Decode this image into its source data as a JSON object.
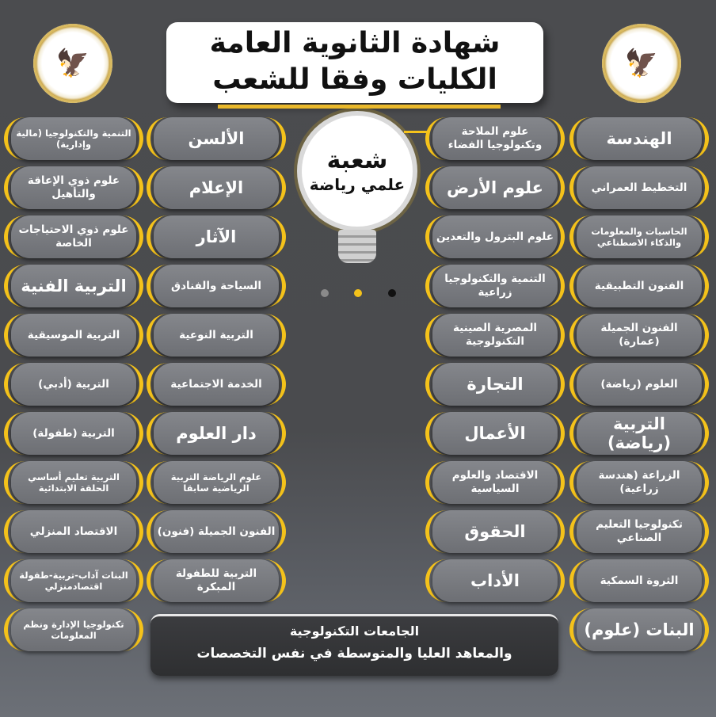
{
  "header": {
    "title_line1": "شهادة الثانوية العامة",
    "title_line2": "الكليات وفقا للشعب",
    "logo_left": "Ministry of Higher Education and Scientific Research",
    "logo_right": "Ministry of Education and Technical Education"
  },
  "bulb": {
    "line1": "شعبة",
    "line2": "علمي رياضة"
  },
  "colors": {
    "accent": "#f4c21b",
    "pill": "#76787d",
    "background": "#4a4b4e"
  },
  "columns": {
    "col1": [
      "التنمية والتكنولوجيا (مالية وإدارية)",
      "علوم ذوي الإعاقة والتأهيل",
      "علوم ذوي الاحتياجات الخاصة",
      "التربية الفنية",
      "التربية الموسيقية",
      "التربية (أدبي)",
      "التربية (طفولة)",
      "التربية تعليم أساسي الحلقة الابتدائية",
      "الاقتصاد المنزلي",
      "البنات آداب-تربية-طفولة اقتصادمنزلي",
      "تكنولوجيا الإدارة ونظم المعلومات"
    ],
    "col2": [
      "الألسن",
      "الإعلام",
      "الآثار",
      "السياحة والفنادق",
      "التربية النوعية",
      "الخدمة الاجتماعية",
      "دار العلوم",
      "علوم الرياضة التربية الرياضية سابقا",
      "الفنون الجميلة (فنون)",
      "التربية للطفولة المبكرة"
    ],
    "col3": [
      "علوم الملاحة وتكنولوجيا الفضاء",
      "علوم الأرض",
      "علوم البترول والتعدين",
      "التنمية والتكنولوجيا زراعية",
      "المصرية الصينية التكنولوجية",
      "التجارة",
      "الأعمال",
      "الاقتصاد والعلوم السياسية",
      "الحقوق",
      "الأداب"
    ],
    "col4": [
      "الهندسة",
      "التخطيط العمراني",
      "الحاسبات والمعلومات والذكاء الاصطناعي",
      "الفنون التطبيقية",
      "الفنون الجميلة (عمارة)",
      "العلوم (رياضة)",
      "التربية (رياضة)",
      "الزراعة (هندسة زراعية)",
      "تكنولوجيا التعليم الصناعي",
      "الثروة السمكية",
      "البنات (علوم)"
    ]
  },
  "bottom_box": {
    "line1": "الجامعات التكنولوجية",
    "line2": "والمعاهد العليا والمتوسطة في نفس التخصصات"
  }
}
